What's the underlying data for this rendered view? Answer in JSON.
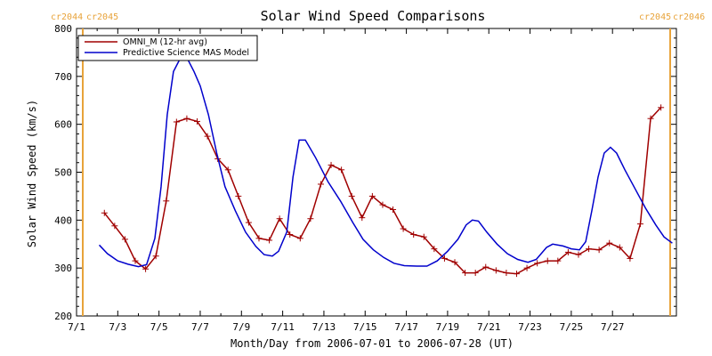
{
  "chart_data": {
    "type": "line",
    "title": "Solar Wind Speed Comparisons",
    "xlabel": "Month/Day from 2006-07-01 to 2006-07-28 (UT)",
    "ylabel": "Solar Wind Speed (km/s)",
    "x_unit_note": "",
    "xlim": [
      0,
      28.5
    ],
    "ylim": [
      200,
      800
    ],
    "x_ticks": [
      {
        "value": 0,
        "label": "7/1"
      },
      {
        "value": 2,
        "label": "7/3"
      },
      {
        "value": 4,
        "label": "7/5"
      },
      {
        "value": 6,
        "label": "7/7"
      },
      {
        "value": 8,
        "label": "7/9"
      },
      {
        "value": 10,
        "label": "7/11"
      },
      {
        "value": 12,
        "label": "7/13"
      },
      {
        "value": 14,
        "label": "7/15"
      },
      {
        "value": 16,
        "label": "7/17"
      },
      {
        "value": 18,
        "label": "7/19"
      },
      {
        "value": 20,
        "label": "7/21"
      },
      {
        "value": 22,
        "label": "7/23"
      },
      {
        "value": 24,
        "label": "7/25"
      },
      {
        "value": 26,
        "label": "7/27"
      }
    ],
    "y_ticks": [
      200,
      300,
      400,
      500,
      600,
      700,
      800
    ],
    "grid": false,
    "legend_position": "top-left",
    "series": [
      {
        "name": "OMNI_M (12-hr avg)",
        "color": "#A00000",
        "marker": "plus",
        "points": [
          [
            1.35,
            415
          ],
          [
            1.85,
            388
          ],
          [
            2.35,
            360
          ],
          [
            2.85,
            315
          ],
          [
            3.35,
            298
          ],
          [
            3.85,
            325
          ],
          [
            4.35,
            440
          ],
          [
            4.85,
            605
          ],
          [
            5.35,
            612
          ],
          [
            5.85,
            606
          ],
          [
            6.35,
            575
          ],
          [
            6.85,
            528
          ],
          [
            7.35,
            505
          ],
          [
            7.85,
            450
          ],
          [
            8.35,
            395
          ],
          [
            8.85,
            362
          ],
          [
            9.35,
            358
          ],
          [
            9.85,
            403
          ],
          [
            10.35,
            370
          ],
          [
            10.85,
            362
          ],
          [
            11.35,
            403
          ],
          [
            11.85,
            475
          ],
          [
            12.35,
            515
          ],
          [
            12.85,
            505
          ],
          [
            13.35,
            450
          ],
          [
            13.85,
            405
          ],
          [
            14.35,
            450
          ],
          [
            14.85,
            432
          ],
          [
            15.35,
            422
          ],
          [
            15.85,
            382
          ],
          [
            16.35,
            370
          ],
          [
            16.85,
            365
          ],
          [
            17.35,
            340
          ],
          [
            17.85,
            320
          ],
          [
            18.35,
            312
          ],
          [
            18.85,
            290
          ],
          [
            19.35,
            290
          ],
          [
            19.85,
            302
          ],
          [
            20.35,
            295
          ],
          [
            20.85,
            290
          ],
          [
            21.35,
            288
          ],
          [
            21.85,
            300
          ],
          [
            22.35,
            310
          ],
          [
            22.85,
            315
          ],
          [
            23.35,
            315
          ],
          [
            23.85,
            333
          ],
          [
            24.35,
            328
          ],
          [
            24.85,
            340
          ],
          [
            25.35,
            338
          ],
          [
            25.85,
            352
          ],
          [
            26.35,
            343
          ],
          [
            26.85,
            320
          ],
          [
            27.35,
            392
          ],
          [
            27.85,
            612
          ],
          [
            28.35,
            635
          ]
        ]
      },
      {
        "name": "Predictive Science MAS Model",
        "color": "#0000CC",
        "marker": "none",
        "points": [
          [
            1.1,
            348
          ],
          [
            1.5,
            330
          ],
          [
            2.0,
            315
          ],
          [
            2.5,
            308
          ],
          [
            3.0,
            303
          ],
          [
            3.4,
            307
          ],
          [
            3.8,
            362
          ],
          [
            4.1,
            470
          ],
          [
            4.4,
            620
          ],
          [
            4.7,
            710
          ],
          [
            5.0,
            735
          ],
          [
            5.4,
            735
          ],
          [
            5.7,
            710
          ],
          [
            6.0,
            680
          ],
          [
            6.4,
            620
          ],
          [
            6.8,
            540
          ],
          [
            7.2,
            470
          ],
          [
            7.7,
            420
          ],
          [
            8.2,
            375
          ],
          [
            8.7,
            345
          ],
          [
            9.1,
            328
          ],
          [
            9.5,
            325
          ],
          [
            9.8,
            335
          ],
          [
            10.2,
            375
          ],
          [
            10.5,
            490
          ],
          [
            10.8,
            567
          ],
          [
            11.1,
            567
          ],
          [
            11.6,
            530
          ],
          [
            12.2,
            480
          ],
          [
            12.8,
            440
          ],
          [
            13.4,
            395
          ],
          [
            13.9,
            360
          ],
          [
            14.4,
            338
          ],
          [
            14.9,
            322
          ],
          [
            15.4,
            310
          ],
          [
            15.9,
            305
          ],
          [
            16.5,
            304
          ],
          [
            17.0,
            304
          ],
          [
            17.5,
            315
          ],
          [
            18.0,
            335
          ],
          [
            18.5,
            360
          ],
          [
            18.9,
            390
          ],
          [
            19.2,
            400
          ],
          [
            19.5,
            398
          ],
          [
            19.9,
            375
          ],
          [
            20.4,
            350
          ],
          [
            20.9,
            330
          ],
          [
            21.4,
            318
          ],
          [
            21.9,
            312
          ],
          [
            22.3,
            318
          ],
          [
            22.8,
            343
          ],
          [
            23.1,
            350
          ],
          [
            23.6,
            346
          ],
          [
            24.0,
            340
          ],
          [
            24.4,
            338
          ],
          [
            24.7,
            355
          ],
          [
            25.0,
            420
          ],
          [
            25.3,
            490
          ],
          [
            25.6,
            540
          ],
          [
            25.9,
            552
          ],
          [
            26.2,
            540
          ],
          [
            26.6,
            505
          ],
          [
            27.1,
            465
          ],
          [
            27.6,
            425
          ],
          [
            28.1,
            390
          ],
          [
            28.5,
            365
          ],
          [
            28.9,
            352
          ]
        ]
      }
    ],
    "carrington_markers": [
      {
        "x": 0,
        "left_label": "cr2044",
        "right_label": "cr2045",
        "side": "left"
      },
      {
        "x": 28.5,
        "left_label": "cr2045",
        "right_label": "cr2046",
        "side": "right"
      }
    ],
    "marker_color": "#E8A33A"
  }
}
